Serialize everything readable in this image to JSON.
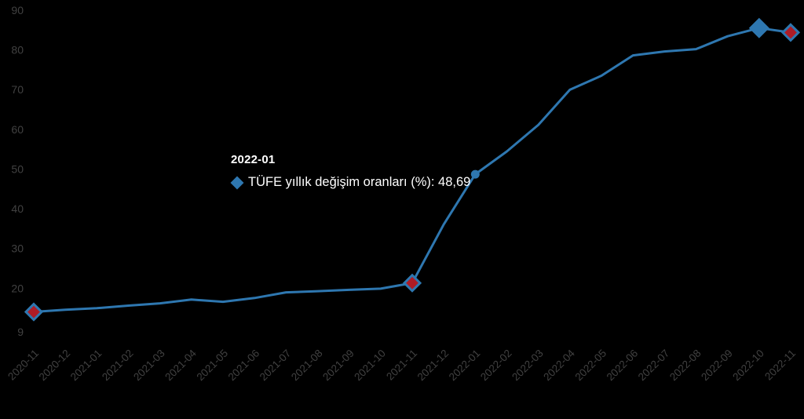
{
  "colors": {
    "background": "#000000",
    "line": "#2E77B0",
    "marker_blue": "#2E77B0",
    "marker_red": "#AE1C26",
    "axis_text": "#414141",
    "tooltip_text": "#FFFFFF"
  },
  "chart_data": {
    "type": "line",
    "title": "",
    "xlabel": "",
    "ylabel": "",
    "grid": false,
    "legend_position": "none",
    "ylim": [
      9,
      90
    ],
    "y_ticks": [
      90,
      80,
      70,
      60,
      50,
      40,
      30,
      20,
      9
    ],
    "categories": [
      "2020-11",
      "2020-12",
      "2021-01",
      "2021-02",
      "2021-03",
      "2021-04",
      "2021-05",
      "2021-06",
      "2021-07",
      "2021-08",
      "2021-09",
      "2021-10",
      "2021-11",
      "2021-12",
      "2022-01",
      "2022-02",
      "2022-03",
      "2022-04",
      "2022-05",
      "2022-06",
      "2022-07",
      "2022-08",
      "2022-09",
      "2022-10",
      "2022-11"
    ],
    "series": [
      {
        "name": "TÜFE yıllık değişim oranları (%)",
        "values": [
          14.03,
          14.6,
          14.97,
          15.61,
          16.19,
          17.14,
          16.59,
          17.53,
          18.95,
          19.25,
          19.58,
          19.89,
          21.31,
          36.08,
          48.69,
          54.44,
          61.14,
          69.97,
          73.5,
          78.62,
          79.6,
          80.21,
          83.45,
          85.51,
          84.39
        ]
      }
    ],
    "markers": [
      {
        "category": "2020-11",
        "index": 0,
        "shape": "diamond",
        "fill": "red"
      },
      {
        "category": "2021-11",
        "index": 12,
        "shape": "diamond",
        "fill": "red"
      },
      {
        "category": "2022-01",
        "index": 14,
        "shape": "circle",
        "fill": "blue"
      },
      {
        "category": "2022-10",
        "index": 23,
        "shape": "diamond",
        "fill": "blue"
      },
      {
        "category": "2022-11",
        "index": 24,
        "shape": "diamond",
        "fill": "red"
      }
    ],
    "tooltip": {
      "title": "2022-01",
      "series_label": "TÜFE yıllık değişim oranları (%)",
      "value": "48,69",
      "text": "TÜFE yıllık değişim oranları (%): 48,69"
    }
  }
}
